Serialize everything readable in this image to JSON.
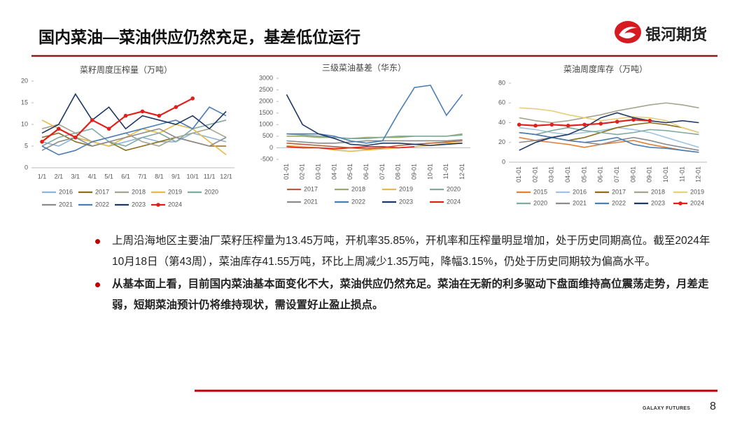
{
  "header": {
    "title": "国内菜油—菜油供应仍然充足，基差低位运行",
    "logo": "银河期货"
  },
  "chart_data": [
    {
      "type": "line",
      "title": "菜籽周度压榨量（万吨）",
      "categories": [
        "1/1",
        "2/1",
        "3/1",
        "4/1",
        "5/1",
        "6/1",
        "7/1",
        "8/1",
        "9/1",
        "10/1",
        "11/1",
        "12/1"
      ],
      "ylim": [
        0,
        20
      ],
      "yticks": [
        0,
        5,
        10,
        15,
        20
      ],
      "series": [
        {
          "name": "2016",
          "color": "#8db4d9",
          "values": [
            6,
            5,
            7,
            6,
            5,
            6,
            7,
            6,
            6,
            8,
            7,
            6
          ]
        },
        {
          "name": "2017",
          "color": "#8b6d1a",
          "values": [
            7,
            8,
            6,
            5,
            6,
            4,
            5,
            6,
            7,
            6,
            5,
            5
          ]
        },
        {
          "name": "2018",
          "color": "#a5a58d",
          "values": [
            9,
            10,
            8,
            6,
            7,
            8,
            6,
            5,
            7,
            8,
            9,
            7
          ]
        },
        {
          "name": "2019",
          "color": "#e8b84a",
          "values": [
            11,
            9,
            7,
            6,
            5,
            7,
            9,
            8,
            10,
            9,
            6,
            3
          ]
        },
        {
          "name": "2020",
          "color": "#7faaa0",
          "values": [
            5,
            7,
            8,
            9,
            6,
            5,
            7,
            8,
            6,
            9,
            10,
            11
          ]
        },
        {
          "name": "2021",
          "color": "#8c8c8c",
          "values": [
            4,
            6,
            7,
            5,
            6,
            7,
            8,
            9,
            7,
            6,
            5,
            7
          ]
        },
        {
          "name": "2022",
          "color": "#4a7eb5",
          "values": [
            5,
            3,
            4,
            6,
            7,
            8,
            9,
            10,
            11,
            9,
            14,
            12
          ]
        },
        {
          "name": "2023",
          "color": "#1f3864",
          "values": [
            8,
            10,
            17,
            11,
            14,
            9,
            12,
            11,
            10,
            12,
            9,
            13
          ]
        },
        {
          "name": "2024",
          "color": "#e0201b",
          "marker": "circle",
          "values": [
            6,
            9,
            7,
            11,
            9,
            12,
            13,
            12,
            14,
            16,
            null,
            null
          ]
        }
      ]
    },
    {
      "type": "line",
      "title": "三级菜油基差（华东）",
      "categories": [
        "01-01",
        "02-01",
        "03-01",
        "04-01",
        "05-01",
        "06-01",
        "07-01",
        "08-01",
        "09-01",
        "10-01",
        "11-01",
        "12-01"
      ],
      "ylim": [
        -500,
        3000
      ],
      "yticks": [
        -500,
        0,
        500,
        1000,
        1500,
        2000,
        2500,
        3000
      ],
      "series": [
        {
          "name": "2017",
          "color": "#b5603a",
          "values": [
            200,
            150,
            100,
            50,
            0,
            -50,
            0,
            100,
            150,
            200,
            250,
            300
          ]
        },
        {
          "name": "2018",
          "color": "#9aaa6a",
          "values": [
            500,
            500,
            450,
            450,
            400,
            450,
            450,
            450,
            500,
            500,
            500,
            600
          ]
        },
        {
          "name": "2019",
          "color": "#e8b84a",
          "values": [
            100,
            50,
            0,
            -100,
            -150,
            -100,
            -50,
            0,
            50,
            100,
            200,
            200
          ]
        },
        {
          "name": "2020",
          "color": "#7faaa0",
          "values": [
            600,
            550,
            500,
            450,
            400,
            400,
            450,
            500,
            500,
            500,
            500,
            550
          ]
        },
        {
          "name": "2021",
          "color": "#8c8c8c",
          "values": [
            300,
            250,
            200,
            200,
            250,
            300,
            300,
            300,
            300,
            300,
            300,
            350
          ]
        },
        {
          "name": "2022",
          "color": "#4a7eb5",
          "values": [
            600,
            600,
            600,
            500,
            300,
            200,
            300,
            1500,
            2600,
            2700,
            1400,
            2300
          ]
        },
        {
          "name": "2023",
          "color": "#1f3864",
          "values": [
            2300,
            1000,
            600,
            400,
            150,
            100,
            200,
            200,
            150,
            100,
            150,
            200
          ]
        },
        {
          "name": "2024",
          "color": "#e0201b",
          "values": [
            50,
            0,
            0,
            -50,
            0,
            50,
            50,
            0,
            50,
            null,
            null,
            null
          ]
        }
      ]
    },
    {
      "type": "line",
      "title": "菜油周度库存（万吨）",
      "categories": [
        "01-01",
        "02-01",
        "03-01",
        "04-01",
        "05-01",
        "06-01",
        "07-01",
        "08-01",
        "09-01",
        "10-01",
        "11-01",
        "12-01"
      ],
      "ylim": [
        0,
        80
      ],
      "yticks": [
        0,
        20,
        40,
        60,
        80
      ],
      "series": [
        {
          "name": "2015",
          "color": "#e0803a",
          "values": [
            25,
            22,
            20,
            18,
            15,
            18,
            20,
            22,
            18,
            15,
            12,
            10
          ]
        },
        {
          "name": "2016",
          "color": "#9fc3e0",
          "values": [
            35,
            33,
            30,
            28,
            30,
            32,
            35,
            33,
            30,
            25,
            20,
            15
          ]
        },
        {
          "name": "2017",
          "color": "#8b6d1a",
          "values": [
            30,
            28,
            25,
            22,
            25,
            30,
            35,
            38,
            40,
            38,
            35,
            30
          ]
        },
        {
          "name": "2018",
          "color": "#a5a58d",
          "values": [
            45,
            42,
            40,
            42,
            45,
            48,
            52,
            55,
            58,
            60,
            58,
            55
          ]
        },
        {
          "name": "2019",
          "color": "#e8cf7a",
          "values": [
            55,
            54,
            52,
            48,
            45,
            42,
            44,
            46,
            45,
            42,
            35,
            30
          ]
        },
        {
          "name": "2020",
          "color": "#7faaa0",
          "values": [
            30,
            28,
            32,
            35,
            32,
            30,
            28,
            30,
            33,
            32,
            30,
            28
          ]
        },
        {
          "name": "2021",
          "color": "#8c8c8c",
          "values": [
            20,
            22,
            25,
            22,
            20,
            18,
            22,
            25,
            22,
            18,
            15,
            12
          ]
        },
        {
          "name": "2022",
          "color": "#4a7eb5",
          "values": [
            30,
            28,
            25,
            22,
            20,
            22,
            25,
            18,
            15,
            14,
            12,
            10
          ]
        },
        {
          "name": "2023",
          "color": "#1f3864",
          "values": [
            12,
            20,
            25,
            28,
            35,
            45,
            50,
            45,
            42,
            40,
            42,
            40
          ]
        },
        {
          "name": "2024",
          "color": "#e0201b",
          "marker": "circle",
          "values": [
            38,
            37,
            38,
            37,
            38,
            39,
            41,
            43,
            42,
            null,
            null,
            null
          ]
        }
      ]
    }
  ],
  "bullets": [
    "上周沿海地区主要油厂菜籽压榨量为13.45万吨，开机率35.85%，开机率和压榨量明显增加，处于历史同期高位。截至2024年10月18日（第43周），菜油库存41.55万吨，环比上周减少1.35万吨，降幅3.15%，仍处于历史同期较为偏高水平。",
    "从基本面上看，目前国内菜油基本面变化不大，菜油供应仍然充足。菜油在无新的利多驱动下盘面维持高位震荡走势，月差走弱，短期菜油预计仍将维持现状，需设置好止盈止损点。"
  ],
  "footer": {
    "brand": "GALAXY FUTURES",
    "page": 8
  }
}
